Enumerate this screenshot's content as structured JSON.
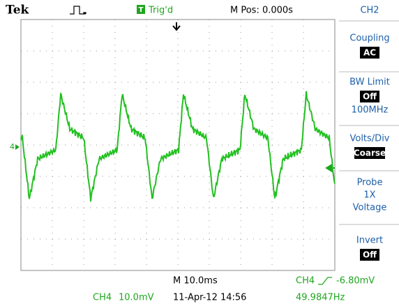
{
  "header": {
    "brand": "Tek",
    "trigger_icon": "T",
    "trigger_status": "Trig'd",
    "position": "M Pos: 0.000s",
    "channel": "CH2"
  },
  "menu": [
    {
      "label": "Coupling",
      "value": "AC"
    },
    {
      "label": "BW Limit",
      "value": "Off",
      "note": "100MHz"
    },
    {
      "label": "Volts/Div",
      "value": "Coarse"
    },
    {
      "label": "Probe",
      "lines": [
        "1X",
        "Voltage"
      ]
    },
    {
      "label": "Invert",
      "value": "Off"
    }
  ],
  "display": {
    "channel_marker": "4"
  },
  "footer": {
    "timebase": "M 10.0ms",
    "trigger_channel": "CH4",
    "trigger_level": "-6.80mV",
    "scale_channel": "CH4",
    "scale": "10.0mV",
    "datetime": "11-Apr-12 14:56",
    "frequency": "49.9847Hz"
  }
}
